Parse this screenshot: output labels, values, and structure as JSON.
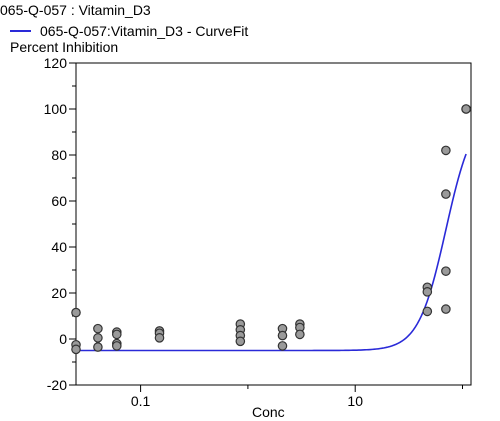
{
  "chart_data": {
    "type": "scatter",
    "title": "065-Q-057  : Vitamin_D3",
    "legend": [
      {
        "label": "065-Q-057:Vitamin_D3 - CurveFit",
        "color": "#2a2ad8",
        "marker": "line"
      }
    ],
    "ylabel": "Percent Inhibition",
    "xlabel": "Conc",
    "x_scale": "log",
    "xlim": [
      0.025,
      120
    ],
    "ylim": [
      -20,
      120
    ],
    "x_ticks": [
      {
        "value": 0.1,
        "label": "0.1"
      },
      {
        "value": 10,
        "label": "10"
      }
    ],
    "y_ticks": [
      {
        "value": -20,
        "label": "-20"
      },
      {
        "value": 0,
        "label": "0"
      },
      {
        "value": 20,
        "label": "20"
      },
      {
        "value": 40,
        "label": "40"
      },
      {
        "value": 60,
        "label": "60"
      },
      {
        "value": 80,
        "label": "80"
      },
      {
        "value": 100,
        "label": "100"
      },
      {
        "value": 120,
        "label": "120"
      }
    ],
    "colors": {
      "curve": "#2a2ad8",
      "point_fill": "#9a9a9a",
      "point_stroke": "#333333",
      "axis": "#000000"
    },
    "series": [
      {
        "kind": "points",
        "points": [
          {
            "x": 0.025,
            "y": 11.5
          },
          {
            "x": 0.025,
            "y": -2.5
          },
          {
            "x": 0.025,
            "y": -4.5
          },
          {
            "x": 0.04,
            "y": 4.5
          },
          {
            "x": 0.04,
            "y": 0.5
          },
          {
            "x": 0.04,
            "y": -3.5
          },
          {
            "x": 0.06,
            "y": 3.0
          },
          {
            "x": 0.06,
            "y": 2.0
          },
          {
            "x": 0.06,
            "y": -2.0
          },
          {
            "x": 0.06,
            "y": -3.0
          },
          {
            "x": 0.15,
            "y": 3.5
          },
          {
            "x": 0.15,
            "y": 2.5
          },
          {
            "x": 0.15,
            "y": 0.5
          },
          {
            "x": 0.85,
            "y": 6.5
          },
          {
            "x": 0.85,
            "y": 4.0
          },
          {
            "x": 0.85,
            "y": 1.5
          },
          {
            "x": 0.85,
            "y": -1.0
          },
          {
            "x": 2.1,
            "y": 4.5
          },
          {
            "x": 2.1,
            "y": 1.5
          },
          {
            "x": 2.1,
            "y": -3.0
          },
          {
            "x": 3.05,
            "y": 6.5
          },
          {
            "x": 3.05,
            "y": 5.0
          },
          {
            "x": 3.05,
            "y": 2.0
          },
          {
            "x": 47,
            "y": 22.5
          },
          {
            "x": 47,
            "y": 20.5
          },
          {
            "x": 47,
            "y": 12.0
          },
          {
            "x": 70,
            "y": 82.0
          },
          {
            "x": 70,
            "y": 63.0
          },
          {
            "x": 70,
            "y": 29.5
          },
          {
            "x": 70,
            "y": 13.0
          },
          {
            "x": 108,
            "y": 100.0
          },
          {
            "x": 108,
            "y": 100.0
          }
        ]
      },
      {
        "kind": "curve",
        "fit": {
          "bottom": -5,
          "top": 100,
          "ec50": 70,
          "hill": 3.4
        },
        "x_range": [
          0.025,
          108
        ]
      }
    ]
  }
}
